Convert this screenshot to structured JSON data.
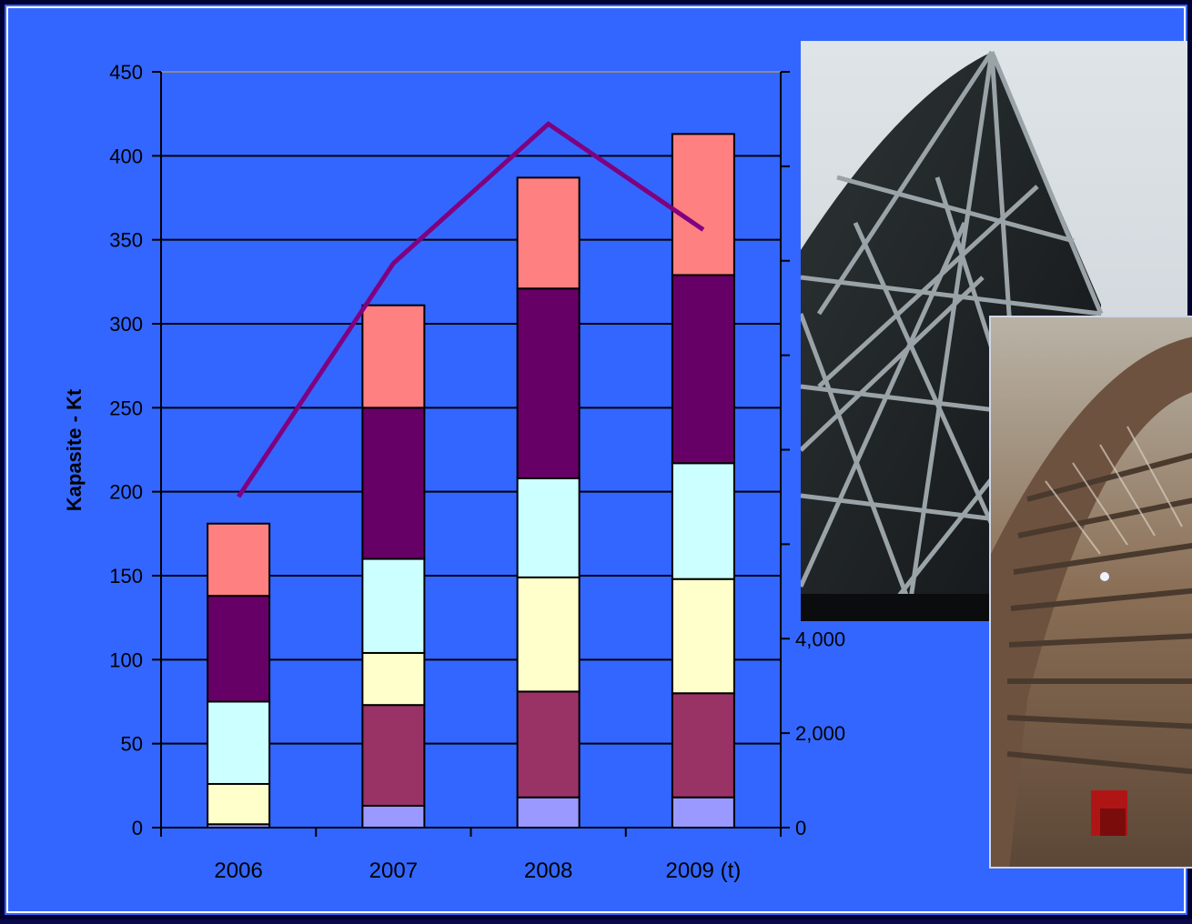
{
  "chart_data": {
    "type": "bar",
    "stacked": true,
    "categories": [
      "2006",
      "2007",
      "2008",
      "2009 (t)"
    ],
    "ylabel": "Kapasite - Kt",
    "ylim": [
      0,
      450
    ],
    "yticks": [
      "0",
      "50",
      "100",
      "150",
      "200",
      "250",
      "300",
      "350",
      "400",
      "450"
    ],
    "y2ticks_visible": [
      "0",
      "2,000",
      "4,000"
    ],
    "grid": true,
    "series": [
      {
        "values": [
          2,
          13,
          18,
          18
        ],
        "color": "#9999ff"
      },
      {
        "values": [
          0,
          60,
          63,
          62
        ],
        "color": "#993366"
      },
      {
        "values": [
          24,
          31,
          68,
          68
        ],
        "color": "#ffffcc"
      },
      {
        "values": [
          49,
          56,
          59,
          69
        ],
        "color": "#ccffff"
      },
      {
        "values": [
          63,
          90,
          113,
          112
        ],
        "color": "#660066"
      },
      {
        "values": [
          43,
          61,
          66,
          84
        ],
        "color": "#ff8080"
      }
    ],
    "line": {
      "values": [
        197,
        336,
        419,
        356
      ],
      "color": "#800080"
    }
  }
}
